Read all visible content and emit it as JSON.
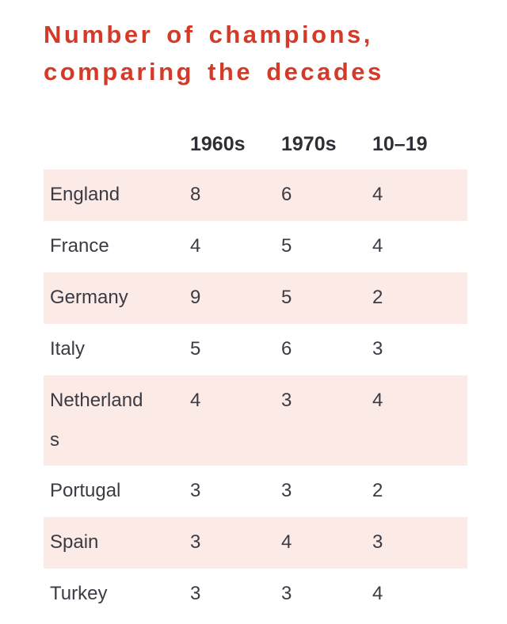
{
  "header": {
    "title_lines": [
      "Number of champions,",
      "comparing the decades"
    ]
  },
  "chart_data": {
    "type": "table",
    "title": "Number of champions, comparing the decades",
    "categories": [
      "England",
      "France",
      "Germany",
      "Italy",
      "Netherlands",
      "Portugal",
      "Spain",
      "Turkey"
    ],
    "series": [
      {
        "name": "1960s",
        "values": [
          8,
          4,
          9,
          5,
          4,
          3,
          3,
          3
        ]
      },
      {
        "name": "1970s",
        "values": [
          6,
          5,
          5,
          6,
          3,
          3,
          4,
          3
        ]
      },
      {
        "name": "10–19",
        "values": [
          4,
          4,
          2,
          3,
          4,
          2,
          3,
          4
        ]
      }
    ],
    "layout": {
      "legend": "none",
      "striped_rows": "alternating, starting shaded at first row",
      "value_alignment": "left"
    }
  },
  "colors": {
    "accent": "#d33b28",
    "stripe": "#fbeae5",
    "text": "#3a3b44",
    "header_text": "#2e2f36",
    "background": "#ffffff"
  }
}
